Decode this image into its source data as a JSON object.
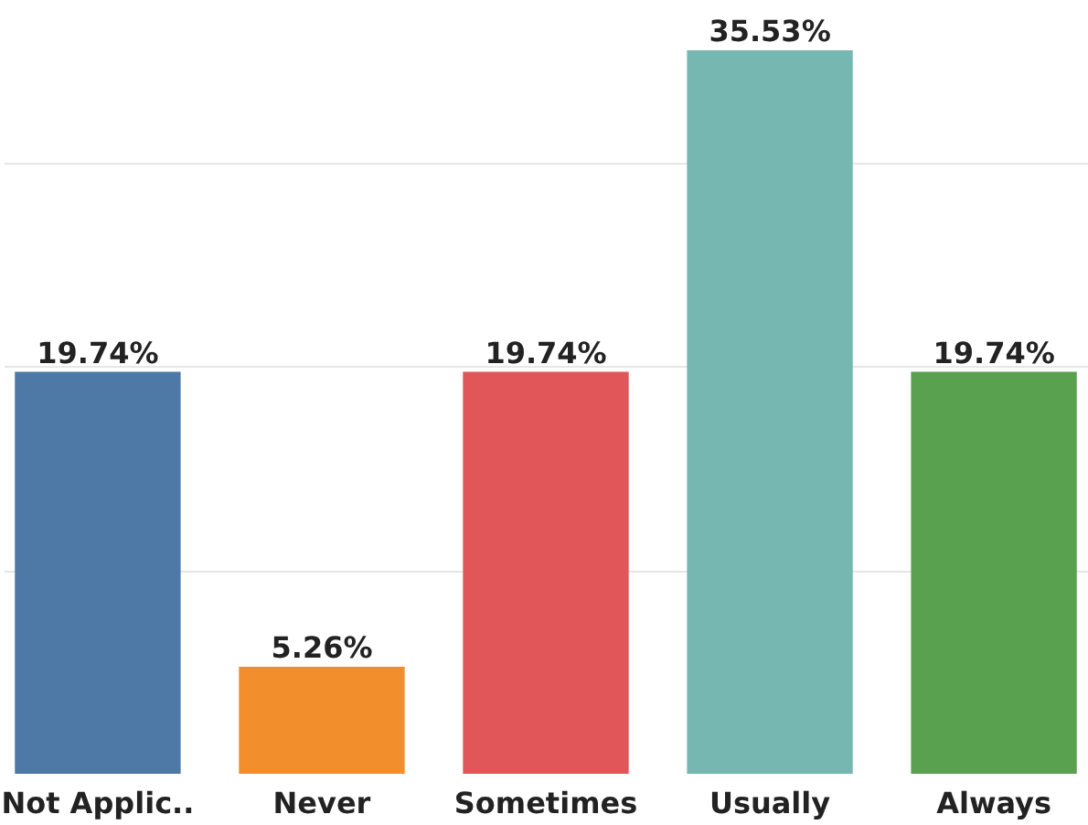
{
  "chart_data": {
    "type": "bar",
    "categories": [
      "Not Applic..",
      "Never",
      "Sometimes",
      "Usually",
      "Always"
    ],
    "values": [
      19.74,
      5.26,
      19.74,
      35.53,
      19.74
    ],
    "colors": [
      "#4e79a7",
      "#f28e2b",
      "#e15759",
      "#76b7b2",
      "#59a14f"
    ],
    "value_labels": [
      "19.74%",
      "5.26%",
      "19.74%",
      "35.53%",
      "19.74%"
    ],
    "ylim": [
      0,
      38
    ],
    "yticks": [
      {
        "value": 10,
        "label": null
      },
      {
        "value": 20,
        "label": null
      },
      {
        "value": 30,
        "label": null
      }
    ],
    "grid": "y"
  }
}
